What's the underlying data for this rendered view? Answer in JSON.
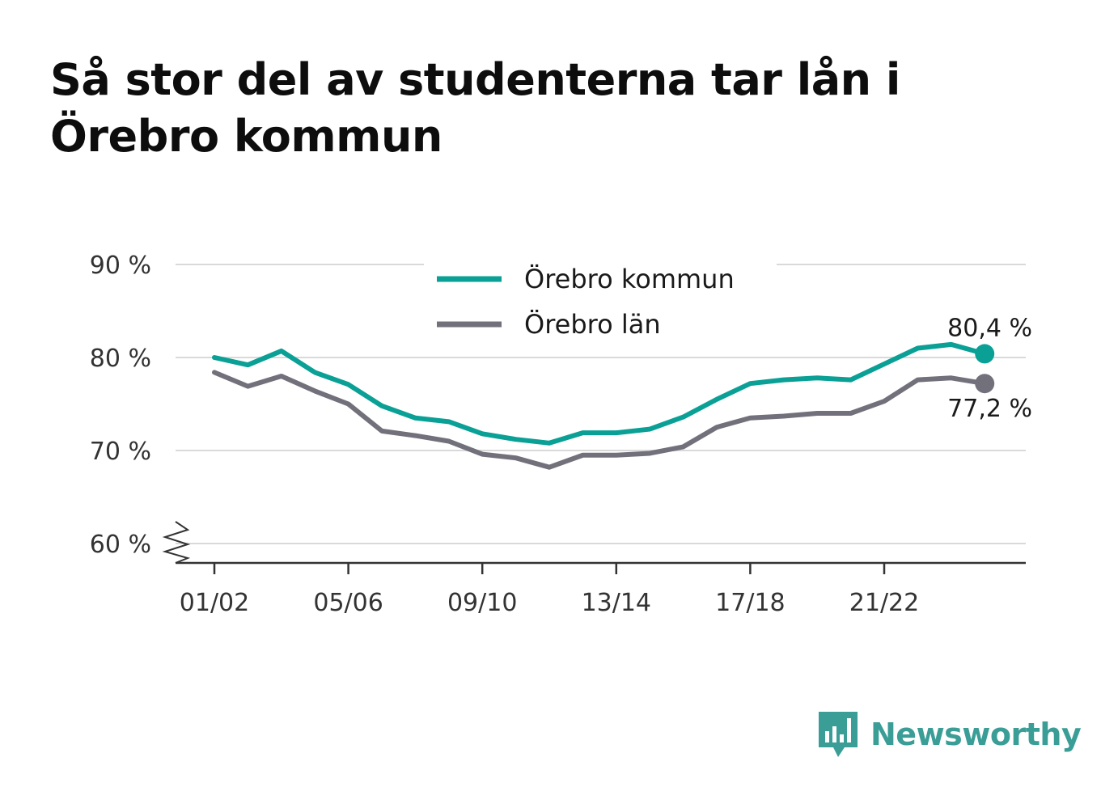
{
  "title": "Så stor del av studenterna tar lån i Örebro kommun",
  "brand": {
    "name": "Newsworthy",
    "color": "#3a9e97",
    "icon": "bar-chart-speech-bubble-icon"
  },
  "chart_data": {
    "type": "line",
    "title": "Så stor del av studenterna tar lån i Örebro kommun",
    "xlabel": "",
    "ylabel": "",
    "ylim": [
      60,
      90
    ],
    "y_axis_broken": true,
    "yticks": [
      60,
      70,
      80,
      90
    ],
    "ytick_labels": [
      "60 %",
      "70 %",
      "80 %",
      "90 %"
    ],
    "x": [
      "01/02",
      "02/03",
      "03/04",
      "04/05",
      "05/06",
      "06/07",
      "07/08",
      "08/09",
      "09/10",
      "10/11",
      "11/12",
      "12/13",
      "13/14",
      "14/15",
      "15/16",
      "16/17",
      "17/18",
      "18/19",
      "19/20",
      "20/21",
      "21/22",
      "22/23",
      "23/24",
      "24/25"
    ],
    "xtick_labels": [
      "01/02",
      "05/06",
      "09/10",
      "13/14",
      "17/18",
      "21/22"
    ],
    "grid": "horizontal",
    "legend": "top-center",
    "series": [
      {
        "name": "Örebro kommun",
        "color": "#0aa096",
        "values": [
          80.0,
          79.2,
          80.7,
          78.4,
          77.1,
          74.8,
          73.5,
          73.1,
          71.8,
          71.2,
          70.8,
          71.9,
          71.9,
          72.3,
          73.6,
          75.5,
          77.2,
          77.6,
          77.8,
          77.6,
          79.3,
          81.0,
          81.4,
          80.4
        ],
        "end_label": "80,4 %"
      },
      {
        "name": "Örebro län",
        "color": "#72717b",
        "values": [
          78.4,
          76.9,
          78.0,
          76.4,
          75.0,
          72.1,
          71.6,
          71.0,
          69.6,
          69.2,
          68.2,
          69.5,
          69.5,
          69.7,
          70.4,
          72.5,
          73.5,
          73.7,
          74.0,
          74.0,
          75.3,
          77.6,
          77.8,
          77.2
        ],
        "end_label": "77,2 %"
      }
    ]
  }
}
